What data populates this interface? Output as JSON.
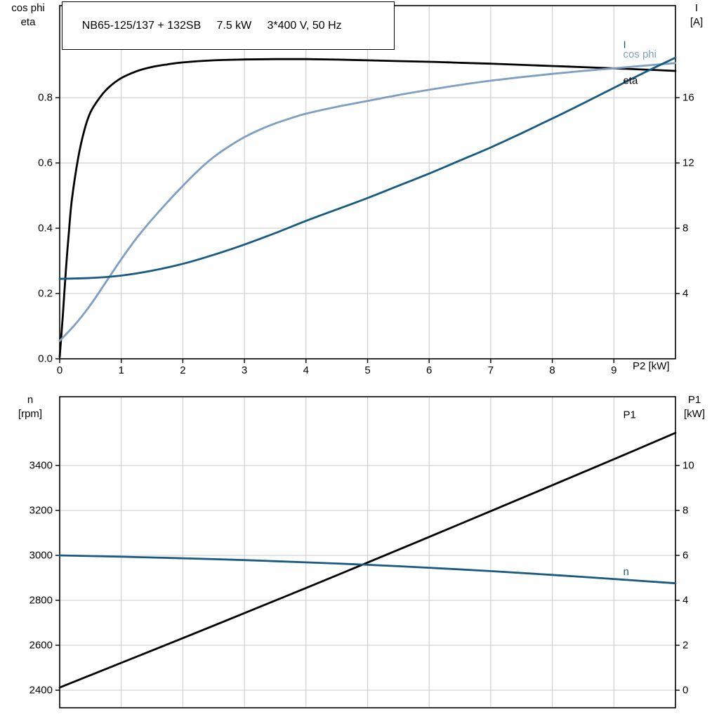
{
  "style": {
    "background": "#ffffff",
    "grid_color": "#c8c8c8",
    "axis_color": "#000000",
    "dark_blue": "#185a80",
    "light_blue": "#7e9fc2",
    "black": "#000000"
  },
  "chart_data": [
    {
      "id": "motor-electrical-curves",
      "type": "line",
      "title": "NB65-125/137 + 132SB     7.5 kW     3*400 V, 50 Hz",
      "x_axis": {
        "label": "P2 [kW]",
        "min": 0,
        "max": 10,
        "tick_values": [
          0,
          1,
          2,
          3,
          4,
          5,
          6,
          7,
          8,
          9
        ],
        "tick_labels": [
          "0",
          "1",
          "2",
          "3",
          "4",
          "5",
          "6",
          "7",
          "8",
          "9"
        ],
        "grid_values": [
          1,
          2,
          3,
          4,
          5,
          6,
          7,
          8,
          9
        ]
      },
      "left_axis": {
        "label_lines": [
          "cos phi",
          "eta"
        ],
        "min": 0,
        "max": 1.082,
        "tick_values": [
          0,
          0.2,
          0.4,
          0.6,
          0.8
        ],
        "tick_labels": [
          "0.0",
          "0.2",
          "0.4",
          "0.6",
          "0.8"
        ],
        "grid_values": [
          0.2,
          0.4,
          0.6,
          0.8
        ]
      },
      "right_axis": {
        "label_lines": [
          "I",
          "[A]"
        ],
        "min": 0,
        "max": 21.64,
        "tick_values": [
          4,
          8,
          12,
          16
        ],
        "tick_labels": [
          "4",
          "8",
          "12",
          "16"
        ]
      },
      "series": [
        {
          "name": "eta",
          "axis": "left",
          "color": "#000000",
          "points": [
            [
              0,
              0.005
            ],
            [
              0.05,
              0.13
            ],
            [
              0.1,
              0.27
            ],
            [
              0.15,
              0.39
            ],
            [
              0.2,
              0.49
            ],
            [
              0.3,
              0.615
            ],
            [
              0.4,
              0.7
            ],
            [
              0.5,
              0.755
            ],
            [
              0.65,
              0.8
            ],
            [
              0.8,
              0.832
            ],
            [
              1,
              0.86
            ],
            [
              1.25,
              0.881
            ],
            [
              1.5,
              0.894
            ],
            [
              1.75,
              0.902
            ],
            [
              2,
              0.908
            ],
            [
              2.5,
              0.9145
            ],
            [
              3,
              0.917
            ],
            [
              3.5,
              0.918
            ],
            [
              4,
              0.918
            ],
            [
              4.5,
              0.9165
            ],
            [
              5,
              0.9145
            ],
            [
              5.5,
              0.912
            ],
            [
              6,
              0.91
            ],
            [
              6.5,
              0.907
            ],
            [
              7,
              0.904
            ],
            [
              7.5,
              0.9005
            ],
            [
              8,
              0.897
            ],
            [
              8.5,
              0.8935
            ],
            [
              9,
              0.89
            ],
            [
              9.5,
              0.886
            ],
            [
              10,
              0.882
            ]
          ]
        },
        {
          "name": "cos phi",
          "axis": "left",
          "color": "#7e9fc2",
          "points": [
            [
              0,
              0.055
            ],
            [
              0.25,
              0.105
            ],
            [
              0.5,
              0.165
            ],
            [
              0.75,
              0.235
            ],
            [
              1,
              0.305
            ],
            [
              1.25,
              0.37
            ],
            [
              1.5,
              0.427
            ],
            [
              1.75,
              0.48
            ],
            [
              2,
              0.53
            ],
            [
              2.25,
              0.577
            ],
            [
              2.5,
              0.618
            ],
            [
              2.75,
              0.651
            ],
            [
              3,
              0.679
            ],
            [
              3.25,
              0.702
            ],
            [
              3.5,
              0.721
            ],
            [
              3.75,
              0.737
            ],
            [
              4,
              0.751
            ],
            [
              4.5,
              0.772
            ],
            [
              5,
              0.79
            ],
            [
              5.5,
              0.808
            ],
            [
              6,
              0.824
            ],
            [
              6.5,
              0.839
            ],
            [
              7,
              0.852
            ],
            [
              7.5,
              0.863
            ],
            [
              8,
              0.873
            ],
            [
              8.5,
              0.882
            ],
            [
              9,
              0.89
            ],
            [
              9.5,
              0.898
            ],
            [
              10,
              0.906
            ]
          ]
        },
        {
          "name": "I",
          "axis": "right",
          "color": "#185a80",
          "points": [
            [
              0,
              4.9
            ],
            [
              0.5,
              4.95
            ],
            [
              1,
              5.1
            ],
            [
              1.5,
              5.4
            ],
            [
              2,
              5.82
            ],
            [
              2.5,
              6.37
            ],
            [
              3,
              7.0
            ],
            [
              3.5,
              7.7
            ],
            [
              4,
              8.45
            ],
            [
              4.5,
              9.15
            ],
            [
              5,
              9.85
            ],
            [
              5.5,
              10.6
            ],
            [
              6,
              11.35
            ],
            [
              6.5,
              12.15
            ],
            [
              7,
              12.95
            ],
            [
              7.5,
              13.82
            ],
            [
              8,
              14.72
            ],
            [
              8.5,
              15.65
            ],
            [
              9,
              16.6
            ],
            [
              9.5,
              17.55
            ],
            [
              10,
              18.45
            ]
          ]
        }
      ],
      "curve_labels": [
        {
          "text": "I",
          "x": 9.15,
          "y": 0.962,
          "axis": "left",
          "color": "#185a80"
        },
        {
          "text": "cos phi",
          "x": 9.15,
          "y": 0.932,
          "axis": "left",
          "color": "#7e9fc2"
        },
        {
          "text": "eta",
          "x": 9.15,
          "y": 0.852,
          "axis": "left",
          "color": "#000000"
        }
      ]
    },
    {
      "id": "speed-power-curves",
      "type": "line",
      "title": "",
      "x_axis": {
        "label": "",
        "min": 0,
        "max": 10,
        "tick_values": [],
        "tick_labels": [],
        "grid_values": [
          1,
          2,
          3,
          4,
          5,
          6,
          7,
          8,
          9
        ]
      },
      "left_axis": {
        "label_lines": [
          "n",
          "[rpm]"
        ],
        "min": 2322,
        "max": 3706,
        "tick_values": [
          2400,
          2600,
          2800,
          3000,
          3200,
          3400
        ],
        "tick_labels": [
          "2400",
          "2600",
          "2800",
          "3000",
          "3200",
          "3400"
        ],
        "grid_values": [
          2400,
          2600,
          2800,
          3000,
          3200,
          3400
        ]
      },
      "right_axis": {
        "label_lines": [
          "P1",
          "[kW]"
        ],
        "min": -0.78,
        "max": 13.06,
        "tick_values": [
          0,
          2,
          4,
          6,
          8,
          10
        ],
        "tick_labels": [
          "0",
          "2",
          "4",
          "6",
          "8",
          "10"
        ]
      },
      "series": [
        {
          "name": "P1",
          "axis": "right",
          "color": "#000000",
          "points": [
            [
              0,
              0.12
            ],
            [
              1,
              1.22
            ],
            [
              2,
              2.32
            ],
            [
              3,
              3.43
            ],
            [
              4,
              4.55
            ],
            [
              5,
              5.68
            ],
            [
              6,
              6.82
            ],
            [
              7,
              7.97
            ],
            [
              8,
              9.12
            ],
            [
              9,
              10.28
            ],
            [
              10,
              11.45
            ]
          ]
        },
        {
          "name": "n",
          "axis": "left",
          "color": "#185a80",
          "points": [
            [
              0,
              3000
            ],
            [
              1,
              2994
            ],
            [
              2,
              2987
            ],
            [
              3,
              2979
            ],
            [
              4,
              2969
            ],
            [
              5,
              2958
            ],
            [
              6,
              2945
            ],
            [
              7,
              2930
            ],
            [
              8,
              2913
            ],
            [
              9,
              2895
            ],
            [
              10,
              2876
            ]
          ]
        }
      ],
      "curve_labels": [
        {
          "text": "P1",
          "x": 9.15,
          "y": 3625,
          "axis": "left",
          "color": "#000000"
        },
        {
          "text": "n",
          "x": 9.15,
          "y": 2927,
          "axis": "left",
          "color": "#185a80"
        }
      ]
    }
  ]
}
